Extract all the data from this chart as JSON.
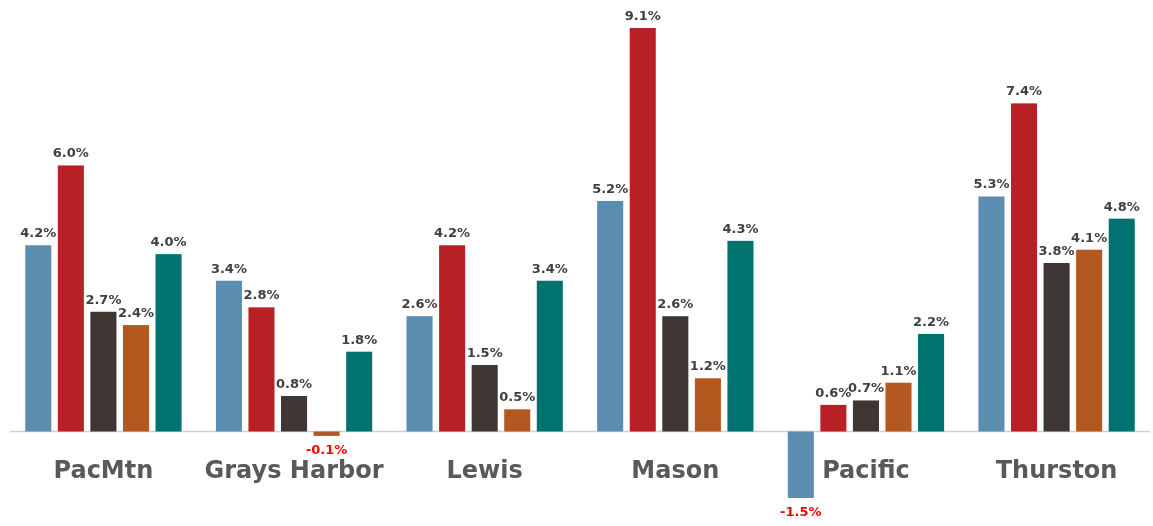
{
  "chart_data": {
    "type": "bar",
    "categories": [
      "PacMtn",
      "Grays Harbor",
      "Lewis",
      "Mason",
      "Pacific",
      "Thurston"
    ],
    "series": [
      {
        "color": "#5b8db0",
        "values": [
          4.2,
          3.4,
          2.6,
          5.2,
          -1.5,
          5.3
        ],
        "value_labels": [
          "4.2%",
          "3.4%",
          "2.6%",
          "5.2%",
          "-1.5%",
          "5.3%"
        ]
      },
      {
        "color": "#b82025",
        "values": [
          6.0,
          2.8,
          4.2,
          9.1,
          0.6,
          7.4
        ],
        "value_labels": [
          "6.0%",
          "2.8%",
          "4.2%",
          "9.1%",
          "0.6%",
          "7.4%"
        ]
      },
      {
        "color": "#3e3632",
        "values": [
          2.7,
          0.8,
          1.5,
          2.6,
          0.7,
          3.8
        ],
        "value_labels": [
          "2.7%",
          "0.8%",
          "1.5%",
          "2.6%",
          "0.7%",
          "3.8%"
        ]
      },
      {
        "color": "#b3581f",
        "values": [
          2.4,
          -0.1,
          0.5,
          1.2,
          1.1,
          4.1
        ],
        "value_labels": [
          "2.4%",
          "-0.1%",
          "0.5%",
          "1.2%",
          "1.1%",
          "4.1%"
        ]
      },
      {
        "color": "#00726f",
        "values": [
          4.0,
          1.8,
          3.4,
          4.3,
          2.2,
          4.8
        ],
        "value_labels": [
          "4.0%",
          "1.8%",
          "3.4%",
          "4.3%",
          "2.2%",
          "4.8%"
        ]
      }
    ],
    "tick_labels": "x"
  }
}
